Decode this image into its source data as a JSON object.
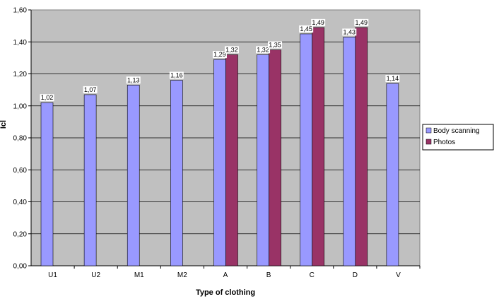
{
  "chart_data": {
    "type": "bar",
    "xlabel": "Type of clothing",
    "ylabel": "Icl",
    "categories": [
      "U1",
      "U2",
      "M1",
      "M2",
      "A",
      "B",
      "C",
      "D",
      "V"
    ],
    "ylim": [
      0,
      1.6
    ],
    "yticks": [
      "0,00",
      "0,20",
      "0,40",
      "0,60",
      "0,80",
      "1,00",
      "1,20",
      "1,40",
      "1,60"
    ],
    "grid": true,
    "legend_position": "right",
    "series": [
      {
        "name": "Body scanning",
        "color": "#9999ff",
        "values": [
          1.02,
          1.07,
          1.13,
          1.16,
          1.29,
          1.32,
          1.45,
          1.43,
          1.14
        ],
        "labels": [
          "1,02",
          "1,07",
          "1,13",
          "1,16",
          "1,29",
          "1,32",
          "1,45",
          "1,43",
          "1,14"
        ]
      },
      {
        "name": "Photos",
        "color": "#993366",
        "values": [
          null,
          null,
          null,
          null,
          1.32,
          1.35,
          1.49,
          1.49,
          null
        ],
        "labels": [
          "",
          "",
          "",
          "",
          "1,32",
          "1,35",
          "1,49",
          "1,49",
          ""
        ]
      }
    ],
    "plot_background": "#c0c0c0"
  }
}
